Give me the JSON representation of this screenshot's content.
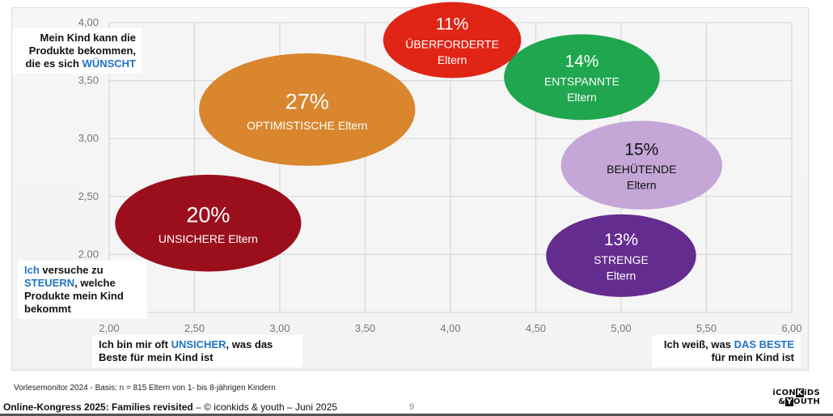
{
  "chart_data": {
    "type": "scatter",
    "subtype": "bubble",
    "title": "",
    "xlabel": "",
    "ylabel": "",
    "xlim": [
      2.0,
      6.0
    ],
    "ylim": [
      1.5,
      4.0
    ],
    "x_ticks": [
      "2,00",
      "2,50",
      "3,00",
      "3,50",
      "4,00",
      "4,50",
      "5,00",
      "5,50",
      "6,00"
    ],
    "x_tick_values": [
      2.0,
      2.5,
      3.0,
      3.5,
      4.0,
      4.5,
      5.0,
      5.5,
      6.0
    ],
    "y_ticks": [
      "4,00",
      "3,50",
      "3,00",
      "2,50",
      "2.00"
    ],
    "y_tick_values": [
      4.0,
      3.5,
      3.0,
      2.5,
      2.0
    ],
    "grid": true,
    "points": [
      {
        "name": "UNSICHERE Eltern",
        "pct_label": "20%",
        "lines": [
          "UNSICHERE Eltern"
        ],
        "share": 20,
        "x": 2.58,
        "y": 2.27,
        "color": "#9b0f1d",
        "text_color": "#ffffff"
      },
      {
        "name": "OPTIMISTISCHE Eltern",
        "pct_label": "27%",
        "lines": [
          "OPTIMISTISCHE Eltern"
        ],
        "share": 27,
        "x": 3.16,
        "y": 3.25,
        "color": "#d9862f",
        "text_color": "#ffffff"
      },
      {
        "name": "ÜBERFORDERTE Eltern",
        "pct_label": "11%",
        "lines": [
          "ÜBERFORDERTE",
          "Eltern"
        ],
        "share": 11,
        "x": 4.01,
        "y": 3.85,
        "color": "#e02516",
        "text_color": "#ffffff"
      },
      {
        "name": "ENTSPANNTE Eltern",
        "pct_label": "14%",
        "lines": [
          "ENTSPANNTE",
          "Eltern"
        ],
        "share": 14,
        "x": 4.77,
        "y": 3.53,
        "color": "#1fa64e",
        "text_color": "#ffffff"
      },
      {
        "name": "BEHÜTENDE Eltern",
        "pct_label": "15%",
        "lines": [
          "BEHÜTENDE",
          "Eltern"
        ],
        "share": 15,
        "x": 5.12,
        "y": 2.77,
        "color": "#c4a7d6",
        "text_color": "#111111"
      },
      {
        "name": "STRENGE Eltern",
        "pct_label": "13%",
        "lines": [
          "STRENGE",
          "Eltern"
        ],
        "share": 13,
        "x": 5.0,
        "y": 1.99,
        "color": "#652c8f",
        "text_color": "#ffffff"
      }
    ],
    "annotations": {
      "y_high": {
        "parts": [
          "Mein Kind kann die Produkte bekommen, die es sich ",
          "WÜNSCHT",
          ""
        ]
      },
      "y_low": {
        "parts": [
          "",
          "Ich",
          " versuche zu ",
          "STEUERN",
          ", welche Produkte mein Kind bekommt"
        ]
      },
      "x_low": {
        "parts": [
          "Ich bin mir oft ",
          "UNSICHER",
          ", was das Beste für mein Kind ist"
        ]
      },
      "x_high": {
        "parts": [
          "Ich weiß, was ",
          "DAS BESTE",
          " für mein Kind ist"
        ]
      }
    },
    "highlight_color": "#1f74c4"
  },
  "source_note": "Vorlesemonitor 2024 - Basis: n = 815 Eltern von 1- bis 8-jährigen Kindern",
  "footer": {
    "event": "Online-Kongress 2025: Families revisited",
    "rest": "  – © iconkids & youth – Juni 2025",
    "page_number": "9"
  },
  "logo": {
    "line1_a": "iCON",
    "line1_box": "K",
    "line1_b": "iDS",
    "line2_a": "&",
    "line2_box": "Y",
    "line2_b": "OUTH"
  }
}
